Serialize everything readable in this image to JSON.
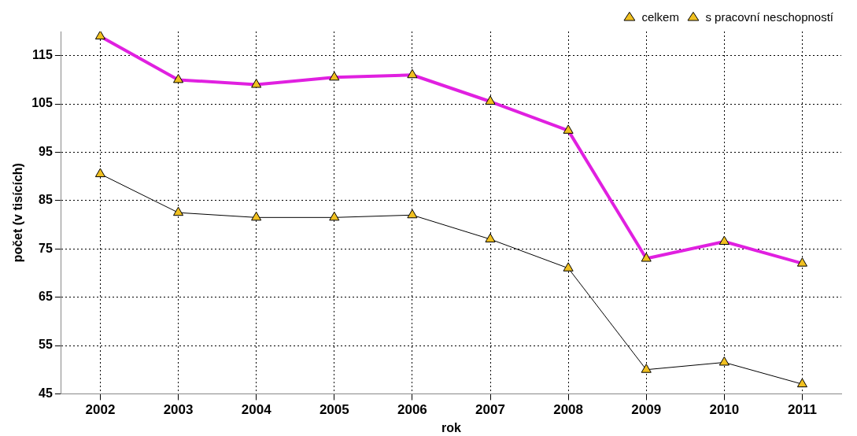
{
  "chart_data": {
    "type": "line",
    "xlabel": "rok",
    "ylabel": "počet (v tisících)",
    "categories": [
      "2002",
      "2003",
      "2004",
      "2005",
      "2006",
      "2007",
      "2008",
      "2009",
      "2010",
      "2011"
    ],
    "series": [
      {
        "name": "celkem",
        "color": "#e020e0",
        "values": [
          119,
          110,
          109,
          110.5,
          111,
          105.5,
          99.5,
          73,
          76.5,
          72
        ]
      },
      {
        "name": "s pracovní neschopností",
        "color": "#000000",
        "values": [
          90.5,
          82.5,
          81.5,
          81.5,
          82,
          77,
          71,
          50,
          51.5,
          47
        ]
      }
    ],
    "ylim": [
      45,
      120
    ],
    "yticks": [
      45,
      55,
      65,
      75,
      85,
      95,
      105,
      115
    ],
    "grid": true,
    "legend": "top right",
    "marker": "triangle"
  }
}
